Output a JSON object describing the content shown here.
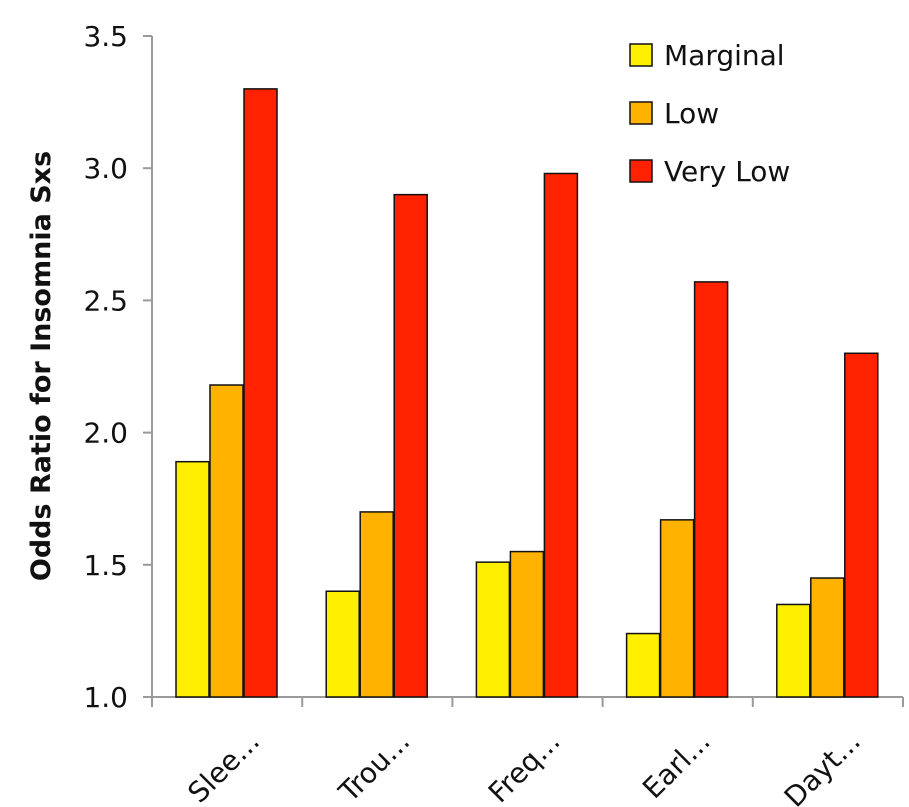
{
  "chart_data": {
    "type": "bar",
    "categories": [
      "Slee...",
      "Trou...",
      "Freq...",
      "Earl...",
      "Dayt..."
    ],
    "series": [
      {
        "name": "Marginal",
        "color": "#FFEF00",
        "values": [
          1.89,
          1.4,
          1.51,
          1.24,
          1.35
        ]
      },
      {
        "name": "Low",
        "color": "#FFB300",
        "values": [
          2.18,
          1.7,
          1.55,
          1.67,
          1.45
        ]
      },
      {
        "name": "Very Low",
        "color": "#FF2200",
        "values": [
          3.3,
          2.9,
          2.98,
          2.57,
          2.3
        ]
      }
    ],
    "ylabel": "Odds Ratio for Insomnia Sxs",
    "xlabel": "",
    "title": "",
    "ylim": [
      1.0,
      3.5
    ],
    "yticks": [
      "1.0",
      "1.5",
      "2.0",
      "2.5",
      "3.0",
      "3.5"
    ],
    "grid": false,
    "legend_position": "top-right"
  }
}
